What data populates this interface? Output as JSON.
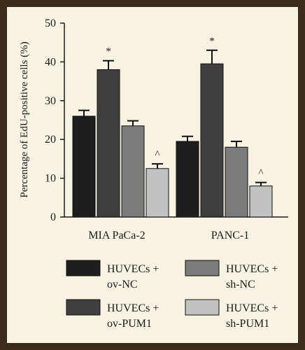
{
  "chart_data": {
    "type": "bar",
    "ylabel": "Percentage of EdU-positive cells (%)",
    "ylim": [
      0,
      50
    ],
    "yticks": [
      "0",
      "10",
      "20",
      "30",
      "40",
      "50"
    ],
    "categories": [
      "MIA PaCa-2",
      "PANC-1"
    ],
    "series": [
      {
        "name": "HUVECs + ov-NC",
        "legend_line1": "HUVECs +",
        "legend_line2": "ov-NC",
        "color": "#1e1e1e",
        "values": [
          26,
          19.5
        ],
        "errors": [
          1.5,
          1.3
        ],
        "markers": [
          "",
          ""
        ]
      },
      {
        "name": "HUVECs + ov-PUM1",
        "legend_line1": "HUVECs +",
        "legend_line2": "ov-PUM1",
        "color": "#3f3f3f",
        "values": [
          38,
          39.5
        ],
        "errors": [
          2.3,
          3.5
        ],
        "markers": [
          "*",
          "*"
        ]
      },
      {
        "name": "HUVECs + sh-NC",
        "legend_line1": "HUVECs +",
        "legend_line2": "sh-NC",
        "color": "#7b7b7b",
        "values": [
          23.5,
          18
        ],
        "errors": [
          1.3,
          1.5
        ],
        "markers": [
          "",
          ""
        ]
      },
      {
        "name": "HUVECs + sh-PUM1",
        "legend_line1": "HUVECs +",
        "legend_line2": "sh-PUM1",
        "color": "#c2c2c2",
        "values": [
          12.5,
          8
        ],
        "errors": [
          1.2,
          0.9
        ],
        "markers": [
          "^",
          "^"
        ]
      }
    ],
    "legend_position": "bottom",
    "grid": false
  }
}
